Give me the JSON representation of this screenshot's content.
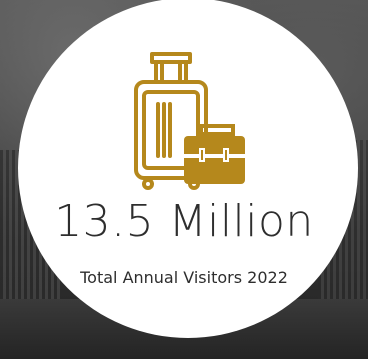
{
  "stat": {
    "value": "13.5 Million",
    "caption": "Total Annual Visitors 2022"
  },
  "icon": {
    "name": "luggage-and-briefcase-icon",
    "color": "#b5881c"
  },
  "colors": {
    "circle": "#ffffff",
    "text": "#2e2e2e"
  }
}
